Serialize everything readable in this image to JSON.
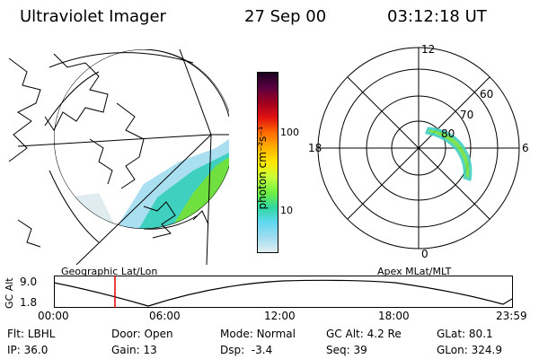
{
  "header": {
    "title": "Ultraviolet Imager",
    "date": "27 Sep 00",
    "time": "03:12:18 UT"
  },
  "geo_panel": {
    "caption": "Geographic Lat/Lon"
  },
  "colorbar": {
    "unit_label": "photon cm⁻²s⁻¹",
    "ticks": [
      "100",
      "10"
    ],
    "colors": [
      "#1a0020",
      "#5a0040",
      "#a00020",
      "#e01010",
      "#ff6a00",
      "#ffb000",
      "#ffe800",
      "#c8ff3a",
      "#70f040",
      "#30d8a0",
      "#60d8f0",
      "#a0dcf0",
      "#e0eef0"
    ]
  },
  "polar_panel": {
    "caption": "Apex MLat/MLT",
    "mlt_labels": {
      "top": "12",
      "left": "18",
      "right": "6",
      "bottom": "0"
    },
    "lat_labels": [
      "60",
      "70",
      "80"
    ]
  },
  "timeline": {
    "y_axis_label": "GC Alt",
    "y_ticks": [
      "9.0",
      "1.8"
    ],
    "x_ticks": [
      "00:00",
      "06:00",
      "12:00",
      "18:00",
      "23:59"
    ],
    "marker_time": "03:12"
  },
  "status": {
    "row1": [
      {
        "label": "Flt:",
        "value": "LBHL"
      },
      {
        "label": "Door:",
        "value": "Open"
      },
      {
        "label": "Mode:",
        "value": "Normal"
      },
      {
        "label": "GC Alt:",
        "value": "4.2 Re"
      },
      {
        "label": "GLat:",
        "value": "80.1"
      }
    ],
    "row2": [
      {
        "label": "IP:",
        "value": "36.0"
      },
      {
        "label": "Gain:",
        "value": "13"
      },
      {
        "label": "Dsp:",
        "value": "-3.4"
      },
      {
        "label": "Seq:",
        "value": "39"
      },
      {
        "label": "GLon:",
        "value": "324.9"
      }
    ]
  },
  "colors": {
    "marker": "#e00000",
    "aurora_green": "#70e040",
    "aurora_cyan": "#40d0c0"
  },
  "icons": [
    "globe-projection",
    "polar-plot"
  ]
}
